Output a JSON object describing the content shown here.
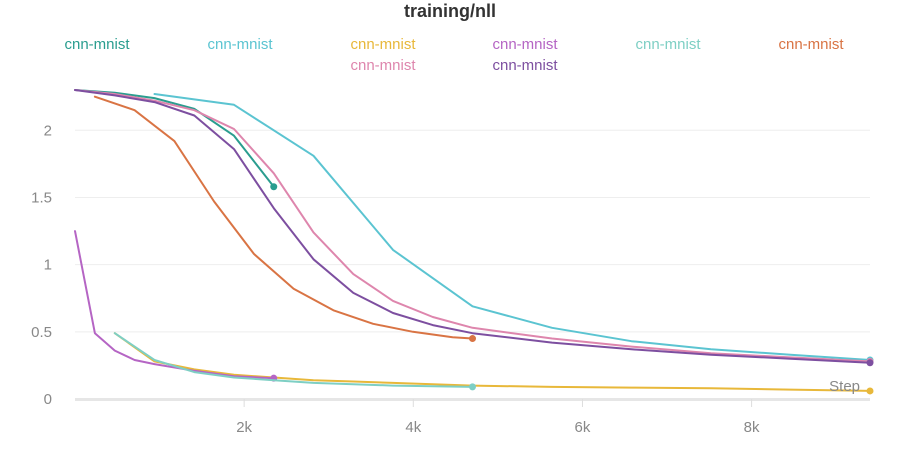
{
  "chart_data": {
    "type": "line",
    "title": "training/nll",
    "xlabel": "Step",
    "ylabel": "",
    "xlim": [
      0,
      9400
    ],
    "ylim": [
      0,
      2.3
    ],
    "x_ticks": [
      2000,
      4000,
      6000,
      8000
    ],
    "x_tick_labels": [
      "2k",
      "4k",
      "6k",
      "8k"
    ],
    "y_ticks": [
      0,
      0.5,
      1,
      1.5,
      2
    ],
    "y_tick_labels": [
      "0",
      "0.5",
      "1",
      "1.5",
      "2"
    ],
    "grid": true,
    "legend_position": "top",
    "series": [
      {
        "name": "cnn-mnist",
        "color": "#2a9d8f",
        "x": [
          0,
          470,
          940,
          1410,
          1880,
          2350
        ],
        "y": [
          2.3,
          2.28,
          2.24,
          2.16,
          1.96,
          1.58
        ]
      },
      {
        "name": "cnn-mnist",
        "color": "#5bc4d1",
        "x": [
          940,
          1880,
          2820,
          3760,
          4700,
          5640,
          6580,
          7520,
          8460,
          9400
        ],
        "y": [
          2.27,
          2.19,
          1.81,
          1.11,
          0.69,
          0.53,
          0.43,
          0.37,
          0.33,
          0.29
        ]
      },
      {
        "name": "cnn-mnist",
        "color": "#e8b83a",
        "x": [
          470,
          940,
          1410,
          1880,
          2350,
          2820,
          3290,
          3760,
          4230,
          4700,
          5640,
          6580,
          7520,
          8460,
          9400
        ],
        "y": [
          0.49,
          0.28,
          0.22,
          0.18,
          0.16,
          0.14,
          0.13,
          0.12,
          0.11,
          0.1,
          0.09,
          0.085,
          0.08,
          0.07,
          0.06
        ]
      },
      {
        "name": "cnn-mnist",
        "color": "#b565c4",
        "x": [
          0,
          235,
          470,
          705,
          940,
          1410,
          1880,
          2350
        ],
        "y": [
          1.25,
          0.49,
          0.36,
          0.29,
          0.26,
          0.21,
          0.17,
          0.155
        ]
      },
      {
        "name": "cnn-mnist",
        "color": "#7ecfc4",
        "x": [
          470,
          940,
          1410,
          1880,
          2350,
          2820,
          3290,
          3760,
          4230,
          4700
        ],
        "y": [
          0.49,
          0.29,
          0.2,
          0.16,
          0.14,
          0.12,
          0.11,
          0.1,
          0.095,
          0.09
        ]
      },
      {
        "name": "cnn-mnist",
        "color": "#d97444",
        "x": [
          235,
          705,
          1175,
          1645,
          2115,
          2585,
          3055,
          3525,
          3995,
          4465,
          4700
        ],
        "y": [
          2.25,
          2.15,
          1.92,
          1.47,
          1.08,
          0.82,
          0.66,
          0.56,
          0.5,
          0.46,
          0.45
        ]
      },
      {
        "name": "cnn-mnist",
        "color": "#de86ad",
        "x": [
          0,
          470,
          940,
          1410,
          1880,
          2350,
          2820,
          3290,
          3760,
          4230,
          4700,
          5640,
          6580,
          7520,
          8460,
          9400
        ],
        "y": [
          2.3,
          2.27,
          2.22,
          2.15,
          2.01,
          1.68,
          1.24,
          0.93,
          0.73,
          0.61,
          0.53,
          0.45,
          0.39,
          0.34,
          0.31,
          0.28
        ]
      },
      {
        "name": "cnn-mnist",
        "color": "#7d4fa0",
        "x": [
          0,
          470,
          940,
          1410,
          1880,
          2350,
          2820,
          3290,
          3760,
          4230,
          4700,
          5640,
          6580,
          7520,
          8460,
          9400
        ],
        "y": [
          2.3,
          2.26,
          2.21,
          2.11,
          1.86,
          1.42,
          1.04,
          0.79,
          0.64,
          0.55,
          0.49,
          0.42,
          0.37,
          0.33,
          0.3,
          0.27
        ]
      }
    ]
  }
}
